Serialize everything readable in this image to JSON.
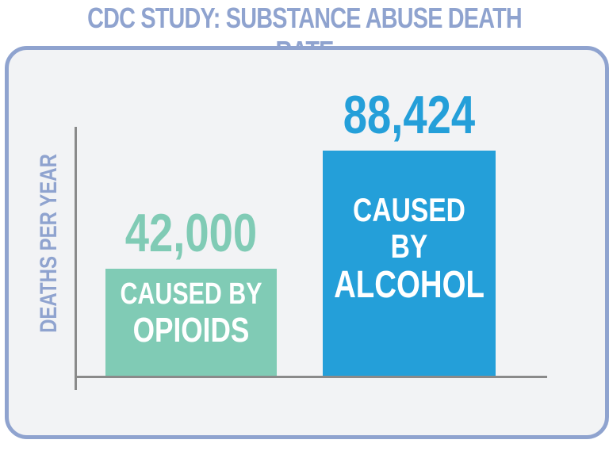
{
  "chart_data": {
    "type": "bar",
    "title": "CDC STUDY: SUBSTANCE ABUSE DEATH RATE",
    "ylabel": "DEATHS PER YEAR",
    "ylim": [
      0,
      100000
    ],
    "bars": [
      {
        "value": 42000,
        "value_label": "42,000",
        "line1": "CAUSED BY",
        "line2": "OPIOIDS",
        "color": "#80cbb5"
      },
      {
        "value": 88424,
        "value_label": "88,424",
        "line1": "CAUSED BY",
        "line2": "ALCOHOL",
        "color": "#249fd9"
      }
    ]
  }
}
